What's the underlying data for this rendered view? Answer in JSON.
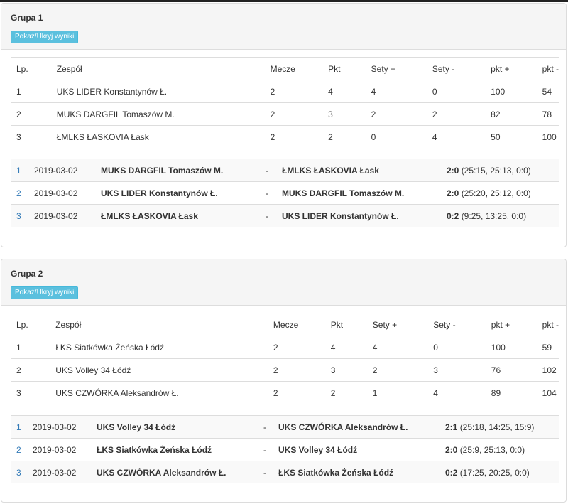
{
  "columns": [
    "Lp.",
    "Zespół",
    "Mecze",
    "Pkt",
    "Sety +",
    "Sety -",
    "pkt +",
    "pkt -"
  ],
  "toggle_label": "Pokaż/Ukryj wyniki",
  "groups": [
    {
      "title": "Grupa 1",
      "standings": [
        {
          "lp": "1",
          "team": "UKS LIDER Konstantynów Ł.",
          "mecze": "2",
          "pkt": "4",
          "sety_plus": "4",
          "sety_minus": "0",
          "pkt_plus": "100",
          "pkt_minus": "54"
        },
        {
          "lp": "2",
          "team": "MUKS DARGFIL Tomaszów M.",
          "mecze": "2",
          "pkt": "3",
          "sety_plus": "2",
          "sety_minus": "2",
          "pkt_plus": "82",
          "pkt_minus": "78"
        },
        {
          "lp": "3",
          "team": "ŁMLKS ŁASKOVIA Łask",
          "mecze": "2",
          "pkt": "2",
          "sety_plus": "0",
          "sety_minus": "4",
          "pkt_plus": "50",
          "pkt_minus": "100"
        }
      ],
      "matches": [
        {
          "no": "1",
          "date": "2019-03-02",
          "home": "MUKS DARGFIL Tomaszów M.",
          "sep": "-",
          "away": "ŁMLKS ŁASKOVIA Łask",
          "score": "2:0",
          "sets": "(25:15, 25:13, 0:0)"
        },
        {
          "no": "2",
          "date": "2019-03-02",
          "home": "UKS LIDER Konstantynów Ł.",
          "sep": "-",
          "away": "MUKS DARGFIL Tomaszów M.",
          "score": "2:0",
          "sets": "(25:20, 25:12, 0:0)"
        },
        {
          "no": "3",
          "date": "2019-03-02",
          "home": "ŁMLKS ŁASKOVIA Łask",
          "sep": "-",
          "away": "UKS LIDER Konstantynów Ł.",
          "score": "0:2",
          "sets": "(9:25, 13:25, 0:0)"
        }
      ]
    },
    {
      "title": "Grupa 2",
      "standings": [
        {
          "lp": "1",
          "team": "ŁKS Siatkówka Żeńska Łódź",
          "mecze": "2",
          "pkt": "4",
          "sety_plus": "4",
          "sety_minus": "0",
          "pkt_plus": "100",
          "pkt_minus": "59"
        },
        {
          "lp": "2",
          "team": "UKS Volley 34 Łódź",
          "mecze": "2",
          "pkt": "3",
          "sety_plus": "2",
          "sety_minus": "3",
          "pkt_plus": "76",
          "pkt_minus": "102"
        },
        {
          "lp": "3",
          "team": "UKS CZWÓRKA Aleksandrów Ł.",
          "mecze": "2",
          "pkt": "2",
          "sety_plus": "1",
          "sety_minus": "4",
          "pkt_plus": "89",
          "pkt_minus": "104"
        }
      ],
      "matches": [
        {
          "no": "1",
          "date": "2019-03-02",
          "home": "UKS Volley 34 Łódź",
          "sep": "-",
          "away": "UKS CZWÓRKA Aleksandrów Ł.",
          "score": "2:1",
          "sets": "(25:18, 14:25, 15:9)"
        },
        {
          "no": "2",
          "date": "2019-03-02",
          "home": "ŁKS Siatkówka Żeńska Łódź",
          "sep": "-",
          "away": "UKS Volley 34 Łódź",
          "score": "2:0",
          "sets": "(25:9, 25:13, 0:0)"
        },
        {
          "no": "3",
          "date": "2019-03-02",
          "home": "UKS CZWÓRKA Aleksandrów Ł.",
          "sep": "-",
          "away": "ŁKS Siatkówka Żeńska Łódź",
          "score": "0:2",
          "sets": "(17:25, 20:25, 0:0)"
        }
      ]
    }
  ]
}
